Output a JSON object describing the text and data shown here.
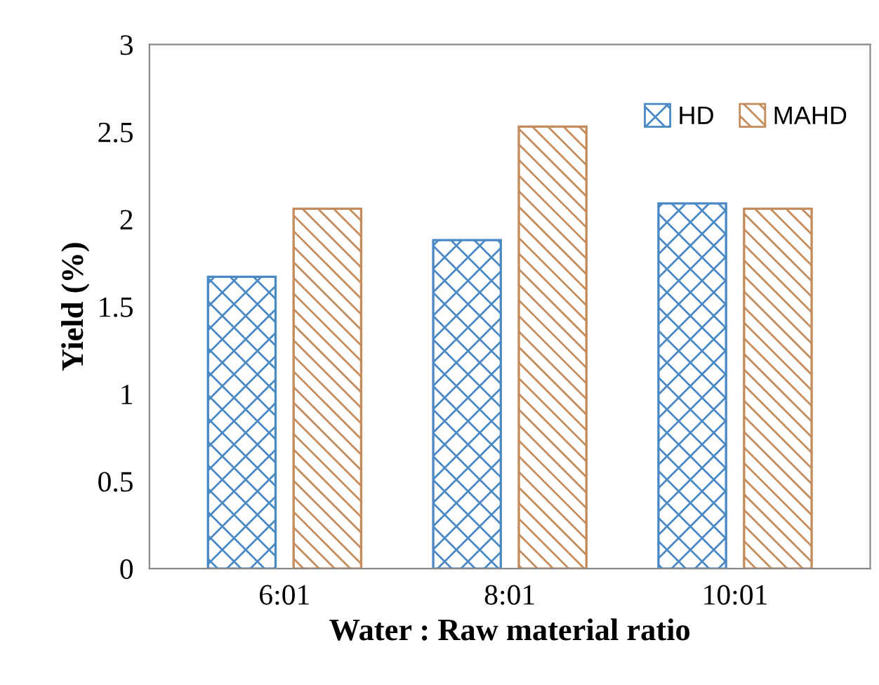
{
  "chart_data": {
    "type": "bar",
    "xlabel": "Water : Raw material ratio",
    "ylabel": "Yield (%)",
    "categories": [
      "6:01",
      "8:01",
      "10:01"
    ],
    "series": [
      {
        "name": "HD",
        "color": "#4a89c4",
        "values": [
          1.67,
          1.88,
          2.09
        ]
      },
      {
        "name": "MAHD",
        "color": "#c48c5c",
        "values": [
          2.06,
          2.53,
          2.06
        ]
      }
    ],
    "ylim": [
      0,
      3
    ],
    "yticks": [
      0,
      0.5,
      1,
      1.5,
      2,
      2.5,
      3
    ],
    "grid": false,
    "legend": "top right"
  }
}
